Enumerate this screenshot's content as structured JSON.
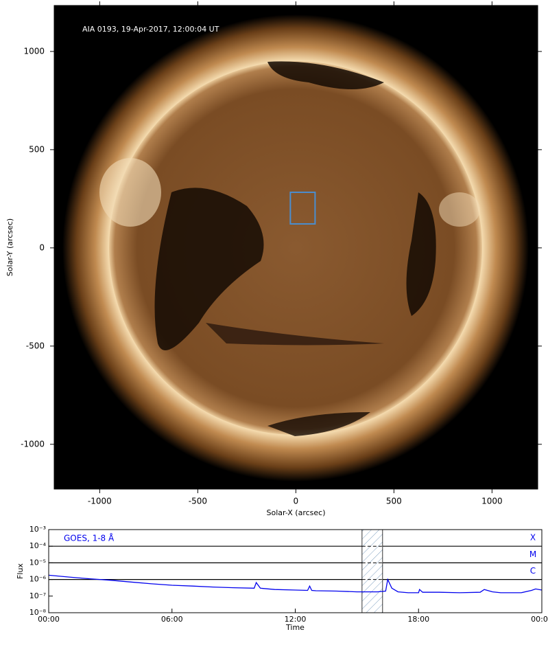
{
  "chart_data": [
    {
      "type": "image",
      "annotation": "AIA 0193, 19-Apr-2017, 12:00:04 UT",
      "xlabel": "Solar-X (arcsec)",
      "ylabel": "Solar-Y (arcsec)",
      "xlim": [
        -1232,
        1233
      ],
      "ylim": [
        -1228,
        1234
      ],
      "xticks": [
        -1000,
        -500,
        0,
        500,
        1000
      ],
      "yticks": [
        -1000,
        -500,
        0,
        500,
        1000
      ],
      "box": {
        "xlim": [
          -28,
          98
        ],
        "ylim": [
          122,
          283
        ],
        "color": "#4a8ed0"
      }
    },
    {
      "type": "line",
      "annotation": "GOES, 1-8 Å",
      "xlabel": "Time",
      "ylabel": "Flux",
      "log_y": true,
      "xlim": [
        0,
        24
      ],
      "ylim": [
        1e-08,
        0.001
      ],
      "xticks": [
        {
          "value": 0,
          "label": "00:00"
        },
        {
          "value": 6,
          "label": "06:00"
        },
        {
          "value": 12,
          "label": "12:00"
        },
        {
          "value": 18,
          "label": "18:00"
        },
        {
          "value": 24,
          "label": "00:00"
        }
      ],
      "yticks": [
        {
          "value": 1e-08,
          "label": "10⁻⁸"
        },
        {
          "value": 1e-07,
          "label": "10⁻⁷"
        },
        {
          "value": 1e-06,
          "label": "10⁻⁶"
        },
        {
          "value": 1e-05,
          "label": "10⁻⁵"
        },
        {
          "value": 0.0001,
          "label": "10⁻⁴"
        },
        {
          "value": 0.001,
          "label": "10⁻³"
        }
      ],
      "levels": [
        {
          "value": 0.0001,
          "label": "X"
        },
        {
          "value": 1e-05,
          "label": "M"
        },
        {
          "value": 1e-06,
          "label": "C"
        }
      ],
      "span": [
        15.25,
        16.25
      ],
      "color": "#0000ee",
      "x": [
        0,
        1,
        2,
        3,
        4,
        5,
        6,
        7,
        8,
        9,
        10,
        10.1,
        10.3,
        11,
        12,
        12.6,
        12.7,
        12.8,
        13,
        14,
        15,
        16,
        16.4,
        16.5,
        16.7,
        17,
        17.5,
        18,
        18.05,
        18.2,
        19,
        20,
        21,
        21.2,
        21.6,
        22,
        23,
        23.5,
        23.7,
        24
      ],
      "values": [
        1.8e-06,
        1.4e-06,
        1.1e-06,
        9e-07,
        7e-07,
        5.5e-07,
        4.5e-07,
        4e-07,
        3.5e-07,
        3.2e-07,
        3e-07,
        6.5e-07,
        3e-07,
        2.5e-07,
        2.3e-07,
        2.2e-07,
        4e-07,
        2.2e-07,
        2.1e-07,
        2e-07,
        1.8e-07,
        1.8e-07,
        2e-07,
        1e-06,
        3e-07,
        1.8e-07,
        1.6e-07,
        1.6e-07,
        2.5e-07,
        1.7e-07,
        1.7e-07,
        1.6e-07,
        1.7e-07,
        2.5e-07,
        1.8e-07,
        1.6e-07,
        1.6e-07,
        2.2e-07,
        2.7e-07,
        2.3e-07
      ]
    }
  ]
}
